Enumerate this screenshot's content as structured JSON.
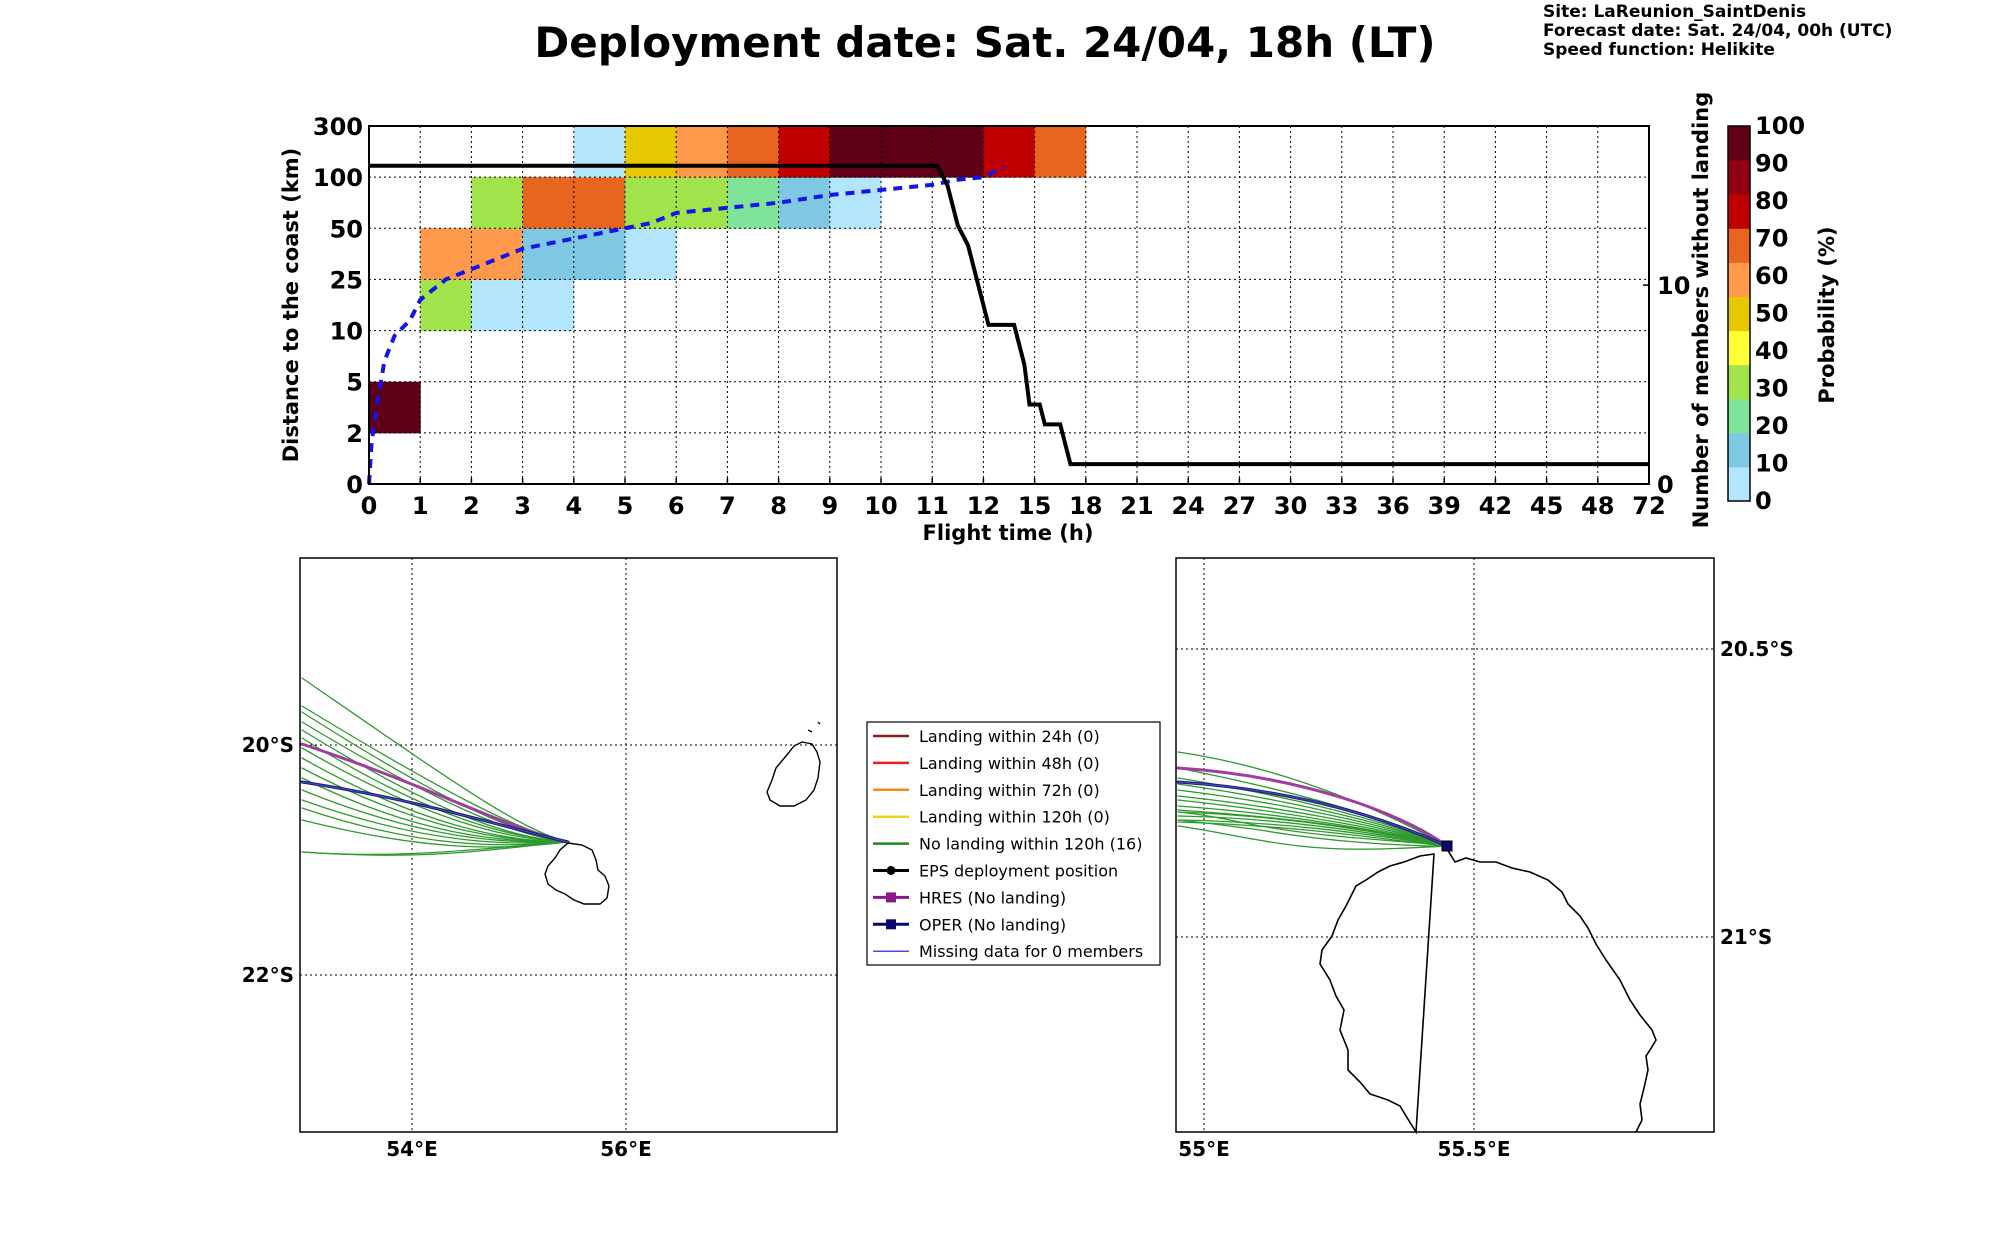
{
  "title": "Deployment date: Sat. 24/04, 18h (LT)",
  "info": {
    "site": "Site: LaReunion_SaintDenis",
    "forecast": "Forecast date: Sat. 24/04, 00h (UTC)",
    "speed": "Speed function: Helikite"
  },
  "colorbar": {
    "label": "Probability (%)",
    "ticks": [
      "0",
      "10",
      "20",
      "30",
      "40",
      "50",
      "60",
      "70",
      "80",
      "90",
      "100"
    ],
    "colors": [
      "#b3e5fc",
      "#7ec8e3",
      "#80e39a",
      "#a0e34a",
      "#ffff33",
      "#e6c800",
      "#ff9a4d",
      "#e8651f",
      "#c00000",
      "#900010",
      "#600018"
    ]
  },
  "chart_data": [
    {
      "type": "heatmap",
      "xlabel": "Flight time (h)",
      "ylabel": "Distance to the coast (km)",
      "y2label": "Number of members without landing",
      "x_ticks": [
        "0",
        "1",
        "2",
        "3",
        "4",
        "5",
        "6",
        "7",
        "8",
        "9",
        "10",
        "11",
        "12",
        "15",
        "18",
        "21",
        "24",
        "27",
        "30",
        "33",
        "36",
        "39",
        "42",
        "45",
        "48",
        "72"
      ],
      "y_ticks": [
        "0",
        "2",
        "5",
        "10",
        "25",
        "50",
        "100",
        "300"
      ],
      "y2_ticks": [
        "0",
        "10"
      ],
      "y2_range": [
        0,
        18
      ],
      "cells": [
        {
          "x": 0,
          "y": 1,
          "p": 100
        },
        {
          "x": 1,
          "y": 3,
          "p": 30
        },
        {
          "x": 1,
          "y": 4,
          "p": 60
        },
        {
          "x": 2,
          "y": 3,
          "p": 0
        },
        {
          "x": 2,
          "y": 4,
          "p": 60
        },
        {
          "x": 2,
          "y": 5,
          "p": 30
        },
        {
          "x": 3,
          "y": 3,
          "p": 0
        },
        {
          "x": 3,
          "y": 4,
          "p": 10
        },
        {
          "x": 3,
          "y": 5,
          "p": 70
        },
        {
          "x": 4,
          "y": 4,
          "p": 10
        },
        {
          "x": 4,
          "y": 5,
          "p": 70
        },
        {
          "x": 4,
          "y": 6,
          "p": 0
        },
        {
          "x": 5,
          "y": 4,
          "p": 0
        },
        {
          "x": 5,
          "y": 5,
          "p": 30
        },
        {
          "x": 5,
          "y": 6,
          "p": 50
        },
        {
          "x": 6,
          "y": 5,
          "p": 30
        },
        {
          "x": 6,
          "y": 6,
          "p": 60
        },
        {
          "x": 7,
          "y": 5,
          "p": 20
        },
        {
          "x": 7,
          "y": 6,
          "p": 70
        },
        {
          "x": 8,
          "y": 5,
          "p": 10
        },
        {
          "x": 8,
          "y": 6,
          "p": 80
        },
        {
          "x": 9,
          "y": 5,
          "p": 0
        },
        {
          "x": 9,
          "y": 6,
          "p": 100
        },
        {
          "x": 10,
          "y": 6,
          "p": 100
        },
        {
          "x": 11,
          "y": 6,
          "p": 100
        },
        {
          "x": 12,
          "y": 6,
          "p": 80
        },
        {
          "x": 13,
          "y": 6,
          "p": 70
        }
      ],
      "mean_distance_curve": [
        [
          0,
          0
        ],
        [
          0.05,
          0.8
        ],
        [
          0.15,
          1.5
        ],
        [
          0.3,
          2.4
        ],
        [
          0.5,
          2.9
        ],
        [
          0.8,
          3.2
        ],
        [
          1,
          3.6
        ],
        [
          1.5,
          4.0
        ],
        [
          2,
          4.2
        ],
        [
          3,
          4.6
        ],
        [
          4,
          4.8
        ],
        [
          5,
          5.0
        ],
        [
          5.5,
          5.1
        ],
        [
          6,
          5.3
        ],
        [
          7,
          5.4
        ],
        [
          8,
          5.5
        ],
        [
          9,
          5.65
        ],
        [
          10,
          5.75
        ],
        [
          11,
          5.85
        ],
        [
          11.5,
          5.95
        ],
        [
          12,
          6.0
        ],
        [
          12.4,
          6.2
        ]
      ],
      "members_without_landing": [
        [
          0,
          16
        ],
        [
          11.1,
          16
        ],
        [
          11.3,
          15
        ],
        [
          11.5,
          13
        ],
        [
          11.7,
          12
        ],
        [
          11.9,
          10
        ],
        [
          12.0,
          9
        ],
        [
          12.1,
          8
        ],
        [
          12.6,
          8
        ],
        [
          12.7,
          7
        ],
        [
          12.8,
          6
        ],
        [
          12.9,
          4
        ],
        [
          13.1,
          4
        ],
        [
          13.2,
          3
        ],
        [
          13.5,
          3
        ],
        [
          13.6,
          2
        ],
        [
          13.7,
          1
        ],
        [
          25,
          1
        ]
      ]
    }
  ],
  "maps": {
    "left": {
      "lon_ticks": [
        "54°E",
        "56°E"
      ],
      "lat_ticks": [
        "20°S",
        "22°S"
      ]
    },
    "right": {
      "lon_ticks": [
        "55°E",
        "55.5°E"
      ],
      "lat_ticks": [
        "20.5°S",
        "21°S"
      ]
    }
  },
  "legend": {
    "items": [
      {
        "label": "Landing within 24h (0)",
        "color": "#8b1a1a",
        "marker": "none"
      },
      {
        "label": "Landing within 48h (0)",
        "color": "#e82020",
        "marker": "none"
      },
      {
        "label": "Landing within 72h (0)",
        "color": "#f08c1c",
        "marker": "none"
      },
      {
        "label": "Landing within 120h (0)",
        "color": "#f0d21c",
        "marker": "none"
      },
      {
        "label": "No landing within 120h (16)",
        "color": "#1f8a1f",
        "marker": "none"
      },
      {
        "label": "EPS deployment position",
        "color": "#000000",
        "marker": "circle"
      },
      {
        "label": "HRES (No landing)",
        "color": "#8a1a8a",
        "marker": "square"
      },
      {
        "label": "OPER (No landing)",
        "color": "#0a0a6e",
        "marker": "square"
      },
      {
        "label": "Missing data for 0 members",
        "color": "#4a4af0",
        "marker": "none"
      }
    ]
  }
}
